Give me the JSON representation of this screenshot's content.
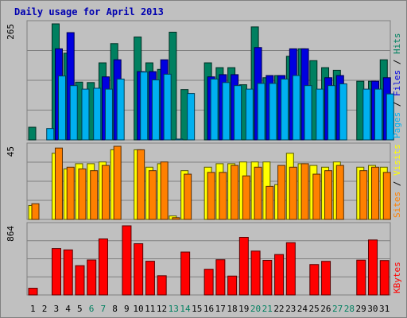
{
  "chart_data": [
    {
      "type": "bar",
      "title": "Daily usage for April 2013",
      "x": [
        "1",
        "2",
        "3",
        "4",
        "5",
        "6",
        "7",
        "8",
        "9",
        "10",
        "11",
        "12",
        "13",
        "14",
        "15",
        "16",
        "17",
        "18",
        "19",
        "20",
        "21",
        "22",
        "23",
        "24",
        "25",
        "26",
        "27",
        "28",
        "29",
        "30",
        "31"
      ],
      "weekend_days": [
        6,
        7,
        13,
        14,
        20,
        21,
        27,
        28
      ],
      "ymax_label": "265",
      "right_label_parts": [
        "Pages",
        "Files",
        "Hits"
      ],
      "series": [
        {
          "name": "Hits",
          "color": "#008060",
          "values": [
            29,
            0,
            265,
            198,
            132,
            131,
            176,
            220,
            0,
            235,
            176,
            161,
            246,
            115,
            0,
            176,
            165,
            165,
            126,
            258,
            142,
            147,
            191,
            208,
            181,
            165,
            159,
            0,
            134,
            134,
            183
          ]
        },
        {
          "name": "Files",
          "color": "#0000e0",
          "values": [
            0,
            0,
            208,
            245,
            0,
            0,
            144,
            183,
            0,
            156,
            156,
            183,
            0,
            0,
            0,
            144,
            149,
            149,
            0,
            211,
            147,
            147,
            208,
            208,
            0,
            142,
            147,
            0,
            0,
            134,
            142
          ]
        },
        {
          "name": "Pages",
          "color": "#00b0f0",
          "values": [
            0,
            26,
            146,
            124,
            116,
            118,
            116,
            139,
            0,
            155,
            137,
            150,
            2,
            106,
            0,
            139,
            131,
            124,
            116,
            129,
            129,
            139,
            147,
            124,
            116,
            124,
            128,
            0,
            116,
            116,
            105
          ]
        }
      ]
    },
    {
      "type": "bar",
      "ymax_label": "45",
      "right_label_parts": [
        "Sites",
        "Visits"
      ],
      "series": [
        {
          "name": "Visits",
          "color": "#ffff00",
          "values": [
            8,
            0,
            38,
            29,
            32,
            32,
            33,
            40,
            0,
            40,
            30,
            32,
            2,
            28,
            0,
            30,
            32,
            32,
            33,
            33,
            33,
            20,
            38,
            32,
            31,
            30,
            33,
            0,
            30,
            31,
            30
          ]
        },
        {
          "name": "Sites",
          "color": "#ff8000",
          "values": [
            9,
            0,
            41,
            30,
            29,
            28,
            31,
            42,
            0,
            40,
            28,
            33,
            1,
            26,
            0,
            27,
            27,
            31,
            25,
            30,
            19,
            31,
            30,
            32,
            26,
            28,
            31,
            0,
            28,
            30,
            27
          ]
        }
      ]
    },
    {
      "type": "bar",
      "ymax_label": "864",
      "right_label_parts": [
        "KBytes"
      ],
      "series": [
        {
          "name": "KBytes",
          "color": "#ff0000",
          "values": [
            84,
            0,
            580,
            563,
            366,
            437,
            700,
            0,
            864,
            640,
            421,
            240,
            0,
            536,
            0,
            321,
            440,
            236,
            720,
            548,
            432,
            505,
            653,
            0,
            380,
            420,
            0,
            0,
            435,
            687,
            430
          ]
        }
      ]
    }
  ]
}
